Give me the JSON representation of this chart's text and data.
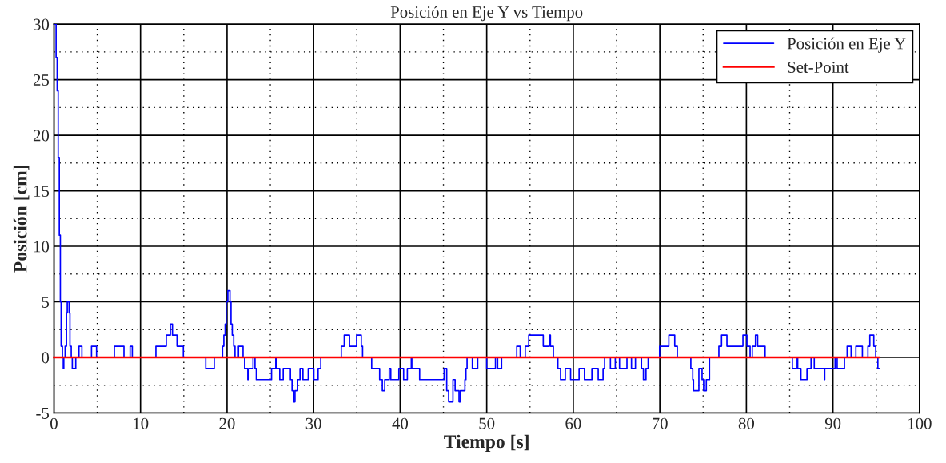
{
  "chart_data": {
    "type": "step",
    "title": "Posición en Eje Y vs Tiempo",
    "xlabel": "Tiempo [s]",
    "ylabel": "Posición [cm]",
    "xlim": [
      0,
      100
    ],
    "xticks": [
      0,
      10,
      20,
      30,
      40,
      50,
      60,
      70,
      80,
      90,
      100
    ],
    "ylim": [
      -5,
      30
    ],
    "yticks": [
      -5,
      0,
      5,
      10,
      15,
      20,
      25,
      30
    ],
    "grid": true,
    "legend": "top right",
    "line_style": "solid",
    "marker": "none",
    "series": [
      {
        "name": "Posición en Eje Y",
        "color": "#0000ff",
        "x": [
          0.05,
          0.25,
          0.37,
          0.49,
          0.62,
          0.74,
          0.83,
          0.98,
          1.08,
          1.14,
          1.29,
          1.45,
          1.54,
          1.75,
          1.85,
          2.0,
          2.12,
          2.52,
          2.89,
          3.23,
          4.34,
          4.92,
          6.98,
          8.09,
          8.8,
          9.05,
          11.78,
          12.98,
          13.45,
          13.69,
          14.22,
          14.95,
          17.54,
          18.52,
          19.48,
          19.63,
          19.78,
          19.9,
          20.09,
          20.34,
          20.46,
          20.6,
          20.77,
          20.92,
          21.32,
          21.85,
          22.03,
          22.4,
          22.52,
          23.0,
          23.23,
          23.38,
          25.14,
          25.63,
          25.7,
          26.09,
          26.49,
          27.32,
          27.51,
          27.69,
          27.85,
          28.15,
          28.43,
          28.77,
          29.38,
          30.03,
          30.52,
          30.83,
          33.2,
          33.54,
          34.15,
          34.97,
          35.51,
          35.66,
          36.71,
          37.63,
          37.94,
          38.22,
          38.74,
          38.92,
          39.85,
          40.4,
          40.83,
          41.29,
          41.35,
          42.25,
          45.08,
          45.38,
          45.6,
          46.1,
          46.35,
          46.8,
          46.96,
          47.48,
          47.6,
          47.65,
          47.73,
          48.34,
          48.96,
          50.0,
          51.01,
          51.26,
          51.72,
          53.47,
          53.87,
          54.45,
          54.85,
          56.53,
          57.24,
          57.36,
          57.7,
          58.22,
          58.53,
          59.08,
          59.69,
          60.67,
          61.29,
          62.15,
          62.88,
          63.44,
          63.62,
          64.29,
          64.85,
          65.34,
          66.2,
          66.72,
          67.18,
          67.88,
          68.1,
          68.4,
          68.65,
          69.97,
          71.04,
          71.72,
          72.02,
          73.58,
          73.8,
          73.89,
          74.35,
          74.51,
          74.88,
          75.06,
          75.37,
          75.59,
          75.74,
          76.82,
          77.13,
          77.75,
          79.6,
          80.06,
          80.43,
          80.68,
          81.05,
          81.3,
          82.16,
          85.31,
          85.77,
          85.93,
          86.3,
          87.0,
          87.47,
          87.84,
          89.0,
          89.05,
          90.25,
          90.49,
          91.33,
          91.64,
          92.1,
          92.65,
          93.4,
          94.04,
          94.26,
          94.72,
          94.94,
          95.19,
          95.34
        ],
        "values": [
          30,
          27,
          24,
          18,
          11,
          5,
          1,
          0,
          -1,
          0,
          1,
          4,
          5,
          4,
          1,
          0,
          -1,
          0,
          1,
          0,
          1,
          0,
          1,
          0,
          1,
          0,
          1,
          2,
          3,
          2,
          1,
          0,
          -1,
          0,
          1,
          2,
          3,
          5,
          6,
          5,
          3,
          2,
          1,
          0,
          1,
          0,
          -1,
          -2,
          -1,
          0,
          -1,
          -2,
          -1,
          0,
          -1,
          -2,
          -1,
          -2,
          -3,
          -4,
          -3,
          -2,
          -1,
          -2,
          -1,
          -2,
          -1,
          0,
          1,
          2,
          1,
          2,
          1,
          0,
          -1,
          -2,
          -3,
          -2,
          -1,
          -2,
          -1,
          -2,
          -1,
          0,
          -1,
          -2,
          -1,
          -3,
          -4,
          -2,
          -3,
          -4,
          -3,
          -2,
          -1,
          -1,
          0,
          -1,
          0,
          -1,
          0,
          -1,
          0,
          1,
          0,
          1,
          2,
          1,
          2,
          1,
          0,
          -1,
          -2,
          -1,
          -2,
          -1,
          -2,
          -1,
          -2,
          -1,
          0,
          -1,
          0,
          -1,
          0,
          -1,
          0,
          -1,
          -2,
          -1,
          0,
          1,
          2,
          1,
          0,
          -1,
          -2,
          -3,
          -3,
          -1,
          -2,
          -3,
          -2,
          -2,
          0,
          1,
          2,
          1,
          2,
          1,
          0,
          1,
          2,
          1,
          0,
          -1,
          0,
          -1,
          -2,
          -1,
          0,
          -1,
          -2,
          -1,
          0,
          -1,
          0,
          1,
          0,
          1,
          0,
          1,
          2,
          1,
          0,
          -1,
          -1
        ]
      },
      {
        "name": "Set-Point",
        "color": "#ff0000",
        "type": "line",
        "x": [
          0,
          95.3
        ],
        "values": [
          0,
          0
        ]
      }
    ]
  }
}
